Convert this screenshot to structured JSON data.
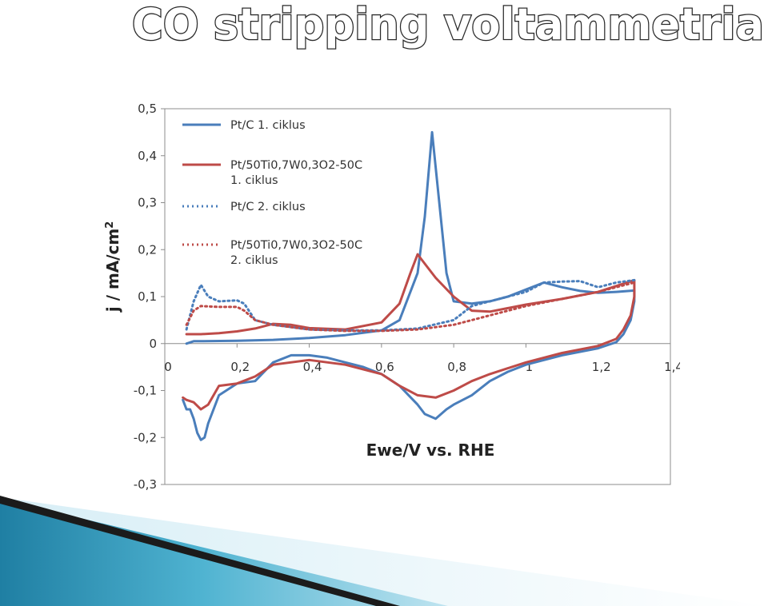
{
  "page": {
    "title": "CO stripping voltammetria"
  },
  "colors": {
    "blue": "#4a7ebb",
    "red": "#be4b48",
    "title_fill": "#ffffff",
    "title_stroke": "#2b2b2b"
  },
  "chart_data": {
    "type": "line",
    "xlabel": "Ewe/V vs. RHE",
    "ylabel": "j / mA/cm2",
    "xlim": [
      0,
      1.4
    ],
    "ylim": [
      -0.3,
      0.5
    ],
    "x_ticks": [
      "0",
      "0,2",
      "0,4",
      "0,6",
      "0,8",
      "1",
      "1,2",
      "1,4"
    ],
    "x_tick_values": [
      0,
      0.2,
      0.4,
      0.6,
      0.8,
      1.0,
      1.2,
      1.4
    ],
    "y_ticks": [
      "-0,3",
      "-0,2",
      "-0,1",
      "0",
      "0,1",
      "0,2",
      "0,3",
      "0,4",
      "0,5"
    ],
    "y_tick_values": [
      -0.3,
      -0.2,
      -0.1,
      0,
      0.1,
      0.2,
      0.3,
      0.4,
      0.5
    ],
    "grid": false,
    "legend_position": "top-left",
    "series": [
      {
        "name": "Pt/C 1. ciklus",
        "color": "#4a7ebb",
        "dash": "solid",
        "x": [
          0.06,
          0.08,
          0.1,
          0.2,
          0.3,
          0.4,
          0.5,
          0.6,
          0.65,
          0.7,
          0.72,
          0.74,
          0.76,
          0.78,
          0.8,
          0.85,
          0.9,
          0.95,
          1.0,
          1.05,
          1.1,
          1.15,
          1.2,
          1.25,
          1.3,
          1.3,
          1.29,
          1.27,
          1.25,
          1.2,
          1.1,
          1.0,
          0.95,
          0.9,
          0.85,
          0.8,
          0.78,
          0.75,
          0.72,
          0.7,
          0.65,
          0.6,
          0.55,
          0.5,
          0.45,
          0.4,
          0.35,
          0.3,
          0.25,
          0.2,
          0.15,
          0.12,
          0.11,
          0.1,
          0.09,
          0.08,
          0.07,
          0.06,
          0.05
        ],
        "y": [
          0.0,
          0.005,
          0.005,
          0.006,
          0.008,
          0.012,
          0.018,
          0.028,
          0.05,
          0.15,
          0.27,
          0.45,
          0.3,
          0.15,
          0.09,
          0.085,
          0.09,
          0.1,
          0.115,
          0.13,
          0.12,
          0.112,
          0.108,
          0.11,
          0.113,
          0.09,
          0.05,
          0.02,
          0.003,
          -0.01,
          -0.025,
          -0.045,
          -0.06,
          -0.08,
          -0.11,
          -0.13,
          -0.14,
          -0.16,
          -0.15,
          -0.13,
          -0.09,
          -0.065,
          -0.05,
          -0.04,
          -0.03,
          -0.025,
          -0.025,
          -0.04,
          -0.08,
          -0.085,
          -0.11,
          -0.17,
          -0.2,
          -0.205,
          -0.19,
          -0.16,
          -0.14,
          -0.14,
          -0.12
        ]
      },
      {
        "name": "Pt/50Ti0,7W0,3O2-50C 1. ciklus",
        "color": "#be4b48",
        "dash": "solid",
        "x": [
          0.06,
          0.08,
          0.1,
          0.15,
          0.2,
          0.25,
          0.3,
          0.35,
          0.4,
          0.5,
          0.6,
          0.65,
          0.68,
          0.7,
          0.72,
          0.75,
          0.8,
          0.85,
          0.9,
          1.0,
          1.1,
          1.2,
          1.3,
          1.3,
          1.29,
          1.27,
          1.25,
          1.2,
          1.1,
          1.0,
          0.9,
          0.85,
          0.8,
          0.75,
          0.7,
          0.65,
          0.6,
          0.5,
          0.4,
          0.3,
          0.25,
          0.2,
          0.15,
          0.12,
          0.1,
          0.08,
          0.06,
          0.05
        ],
        "y": [
          0.02,
          0.02,
          0.02,
          0.022,
          0.026,
          0.032,
          0.042,
          0.04,
          0.033,
          0.03,
          0.045,
          0.085,
          0.15,
          0.19,
          0.17,
          0.14,
          0.1,
          0.07,
          0.068,
          0.083,
          0.095,
          0.11,
          0.135,
          0.1,
          0.06,
          0.03,
          0.01,
          -0.005,
          -0.02,
          -0.04,
          -0.065,
          -0.08,
          -0.1,
          -0.115,
          -0.11,
          -0.09,
          -0.065,
          -0.045,
          -0.035,
          -0.045,
          -0.07,
          -0.085,
          -0.09,
          -0.13,
          -0.14,
          -0.125,
          -0.12,
          -0.115
        ]
      },
      {
        "name": "Pt/C 2. ciklus",
        "color": "#4a7ebb",
        "dash": "dotted",
        "x": [
          0.06,
          0.08,
          0.1,
          0.12,
          0.15,
          0.2,
          0.22,
          0.25,
          0.3,
          0.4,
          0.5,
          0.6,
          0.7,
          0.8,
          0.85,
          0.9,
          1.0,
          1.05,
          1.1,
          1.15,
          1.2,
          1.25,
          1.3
        ],
        "y": [
          0.03,
          0.09,
          0.125,
          0.1,
          0.09,
          0.092,
          0.085,
          0.05,
          0.04,
          0.03,
          0.028,
          0.028,
          0.032,
          0.05,
          0.08,
          0.09,
          0.11,
          0.13,
          0.132,
          0.133,
          0.12,
          0.13,
          0.135
        ]
      },
      {
        "name": "Pt/50Ti0,7W0,3O2-50C 2. ciklus",
        "color": "#be4b48",
        "dash": "dotted",
        "x": [
          0.06,
          0.08,
          0.1,
          0.15,
          0.2,
          0.22,
          0.25,
          0.3,
          0.4,
          0.5,
          0.6,
          0.7,
          0.8,
          0.9,
          1.0,
          1.1,
          1.2,
          1.3
        ],
        "y": [
          0.04,
          0.07,
          0.08,
          0.078,
          0.078,
          0.07,
          0.05,
          0.04,
          0.03,
          0.027,
          0.027,
          0.03,
          0.04,
          0.06,
          0.08,
          0.095,
          0.11,
          0.13
        ]
      }
    ],
    "legend": [
      {
        "lines": [
          "Pt/C 1. ciklus"
        ],
        "series": 0
      },
      {
        "lines": [
          "Pt/50Ti0,7W0,3O2-50C",
          "1. ciklus"
        ],
        "series": 1
      },
      {
        "lines": [
          "Pt/C 2. ciklus"
        ],
        "series": 2
      },
      {
        "lines": [
          "Pt/50Ti0,7W0,3O2-50C",
          "2. ciklus"
        ],
        "series": 3
      }
    ]
  }
}
